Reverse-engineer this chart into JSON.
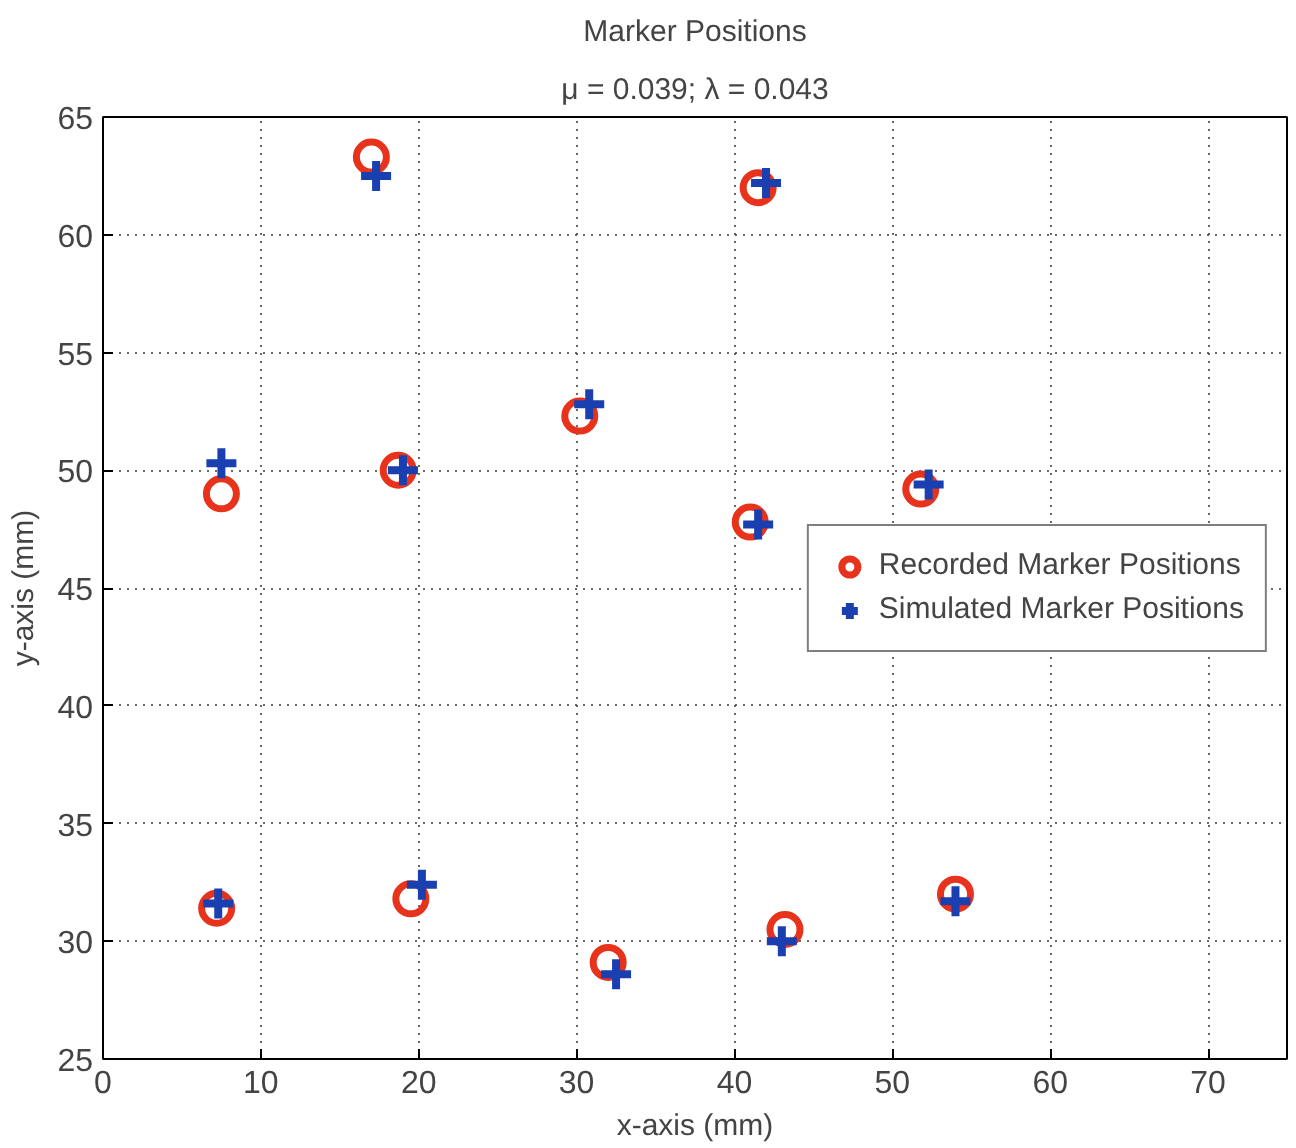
{
  "chart_data": {
    "type": "scatter",
    "title": "Marker Positions",
    "subtitle": "μ = 0.039; λ = 0.043",
    "xlabel": "x-axis (mm)",
    "ylabel": "y-axis (mm)",
    "xlim": [
      0,
      75
    ],
    "ylim": [
      25,
      65
    ],
    "xticks": [
      0,
      10,
      20,
      30,
      40,
      50,
      60,
      70
    ],
    "yticks": [
      25,
      30,
      35,
      40,
      45,
      50,
      55,
      60,
      65
    ],
    "grid": true,
    "legend": "right",
    "series": [
      {
        "name": "Recorded Marker Positions",
        "color": "#e8331c",
        "marker": "circle",
        "x": [
          7.5,
          17.0,
          18.7,
          30.2,
          41.5,
          41.0,
          51.8,
          7.2,
          19.5,
          32.0,
          43.2,
          54.0
        ],
        "values": [
          49.0,
          63.3,
          50.0,
          52.3,
          62.0,
          47.8,
          49.2,
          31.4,
          31.8,
          29.1,
          30.5,
          32.0
        ]
      },
      {
        "name": "Simulated Marker Positions",
        "color": "#1a3fb0",
        "marker": "cross",
        "x": [
          7.5,
          17.3,
          19.0,
          30.8,
          42.0,
          41.5,
          52.3,
          7.3,
          20.2,
          32.5,
          43.0,
          54.0
        ],
        "values": [
          50.3,
          62.5,
          50.0,
          52.8,
          62.2,
          47.7,
          49.4,
          31.6,
          32.4,
          28.6,
          30.0,
          31.7
        ]
      }
    ]
  }
}
